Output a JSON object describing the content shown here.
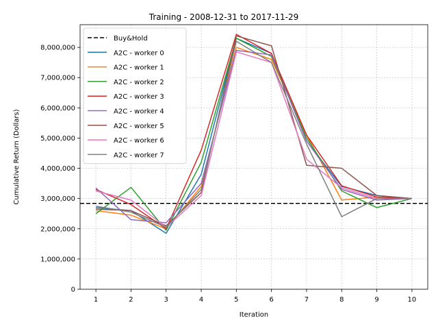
{
  "chart_data": {
    "type": "line",
    "title": "Training - 2008-12-31 to 2017-11-29",
    "xlabel": "Iteration",
    "ylabel": "Cumulative Return (Dollars)",
    "x": [
      1,
      2,
      3,
      4,
      5,
      6,
      7,
      8,
      9,
      10
    ],
    "xlim": [
      0.55,
      10.45
    ],
    "ylim": [
      0,
      8750000
    ],
    "yticks": [
      0,
      1000000,
      2000000,
      3000000,
      4000000,
      5000000,
      6000000,
      7000000,
      8000000
    ],
    "ytick_labels": [
      "0",
      "1,000,000",
      "2,000,000",
      "3,000,000",
      "4,000,000",
      "5,000,000",
      "6,000,000",
      "7,000,000",
      "8,000,000"
    ],
    "grid": true,
    "legend": "upper-left",
    "buyhold": {
      "name": "Buy&Hold",
      "value": 2840000,
      "color": "#000000"
    },
    "series": [
      {
        "name": "A2C - worker 0",
        "color": "#1f77b4",
        "values": [
          2700000,
          2600000,
          1850000,
          3800000,
          8300000,
          7800000,
          4900000,
          3400000,
          3100000,
          3000000
        ]
      },
      {
        "name": "A2C - worker 1",
        "color": "#ff7f0e",
        "values": [
          2600000,
          2450000,
          2000000,
          3400000,
          8000000,
          7600000,
          5100000,
          2950000,
          3050000,
          3000000
        ]
      },
      {
        "name": "A2C - worker 2",
        "color": "#2ca02c",
        "values": [
          2500000,
          3370000,
          1950000,
          4200000,
          8300000,
          7700000,
          5000000,
          3250000,
          2700000,
          3000000
        ]
      },
      {
        "name": "A2C - worker 3",
        "color": "#d62728",
        "values": [
          3300000,
          2800000,
          2000000,
          4600000,
          8430000,
          7800000,
          5100000,
          3420000,
          3050000,
          3000000
        ]
      },
      {
        "name": "A2C - worker 4",
        "color": "#9467bd",
        "values": [
          3350000,
          2300000,
          2200000,
          3500000,
          7900000,
          7750000,
          4900000,
          3300000,
          2950000,
          3000000
        ]
      },
      {
        "name": "A2C - worker 5",
        "color": "#8c564b",
        "values": [
          2650000,
          2600000,
          2100000,
          3200000,
          8380000,
          8050000,
          4100000,
          4000000,
          3100000,
          3000000
        ]
      },
      {
        "name": "A2C - worker 6",
        "color": "#e377c2",
        "values": [
          3250000,
          2950000,
          2050000,
          3100000,
          7850000,
          7500000,
          4300000,
          3350000,
          3000000,
          3000000
        ]
      },
      {
        "name": "A2C - worker 7",
        "color": "#7f7f7f",
        "values": [
          2750000,
          2550000,
          2050000,
          3300000,
          8200000,
          7500000,
          4800000,
          2400000,
          3000000,
          3000000
        ]
      }
    ]
  }
}
